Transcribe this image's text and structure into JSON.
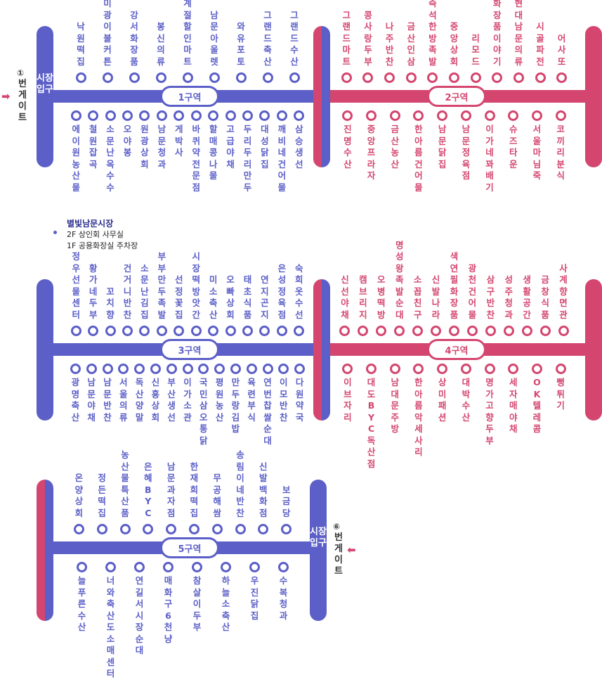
{
  "colors": {
    "blue": "#5b5fc7",
    "pink": "#d4466f"
  },
  "gates": {
    "gate1": {
      "number": "①",
      "label": "번게이트",
      "cap_label": "시장입구"
    },
    "gate6": {
      "number": "⑥",
      "label": "번게이트",
      "cap_label": "시장입구"
    }
  },
  "info": {
    "title": "별빛남문시장",
    "line1": "2F 상인회 사무실",
    "line2": "1F 공용화장실 주차장"
  },
  "zones": [
    {
      "label": "1구역",
      "color": "blue",
      "top": [
        "낙원떡집",
        "미광이불커튼",
        "강서화장품",
        "봉신의류",
        "사계절할인마트",
        "남문아울렛",
        "와유포토",
        "그랜드축산",
        "그랜드수산"
      ],
      "bottom": [
        "에이원농산물",
        "철원잡곡",
        "소문난옥수수",
        "오야봉",
        "원광상회",
        "남문청과",
        "게박사",
        "바퀴약전문점",
        "할매콩나물",
        "고급야채",
        "두리두리만두",
        "대성닭집",
        "깨비네건어물",
        "삼승생선"
      ]
    },
    {
      "label": "2구역",
      "color": "pink",
      "top": [
        "그랜드마트",
        "콩사랑두부",
        "나주반찬",
        "금산인삼",
        "즉석한방족발",
        "중앙상회",
        "리모드",
        "화장품이야기",
        "현대남문의류",
        "시골파전",
        "어사또"
      ],
      "bottom": [
        "진명수산",
        "중앙프라자",
        "금산농산",
        "한아름건어물",
        "남문닭집",
        "남문정육점",
        "이가네꽈배기",
        "슈즈타운",
        "서울마님죽",
        "코끼리분식"
      ]
    },
    {
      "label": "3구역",
      "color": "blue",
      "top": [
        "정우선물센터",
        "황가네두부",
        "꼬치향",
        "건거니반찬",
        "소문난김집",
        "부부만두족발",
        "선정꽃집",
        "시장떡방앗간",
        "미소축산",
        "오빠상회",
        "태초식품",
        "연지곤지",
        "은성정육점",
        "숙희옷수선"
      ],
      "bottom": [
        "광명축산",
        "남문야채",
        "남문반찬",
        "서울의류",
        "독산양말",
        "신흥상회",
        "부산생선",
        "이가소관",
        "국민삼오통닭",
        "평원농산",
        "만두랑김밥",
        "육련부식",
        "연번찹쌀순대",
        "이모반찬",
        "다원약국"
      ]
    },
    {
      "label": "4구역",
      "color": "pink",
      "top": [
        "신선야채",
        "캠브리지",
        "오병떡방",
        "명성왕족발순대",
        "소꼽친구",
        "신발나라",
        "색연필화장품",
        "광천건어물",
        "삼구반찬",
        "성주청과",
        "생활공간",
        "금창식품",
        "사계향면관"
      ],
      "bottom": [
        "이브자리",
        "대도BYC독산점",
        "남대문주방",
        "한아름악세사리",
        "상미패션",
        "대박수산",
        "명가고향두부",
        "세자매야채",
        "OK텔레콤",
        "뻥튀기"
      ]
    },
    {
      "label": "5구역",
      "color": "blue",
      "top": [
        "온양상회",
        "정든떡집",
        "농산물특산품",
        "은혜BYC",
        "남문과자점",
        "한재희떡집",
        "무공해쌈",
        "송림이네반찬",
        "신발백화점",
        "보금당"
      ],
      "bottom": [
        "늘푸른수산",
        "너와축산도소매센터",
        "연길서시장순대",
        "매화구6천냥",
        "참살이두부",
        "하늘소축산",
        "우진닭집",
        "수복청과"
      ]
    }
  ]
}
